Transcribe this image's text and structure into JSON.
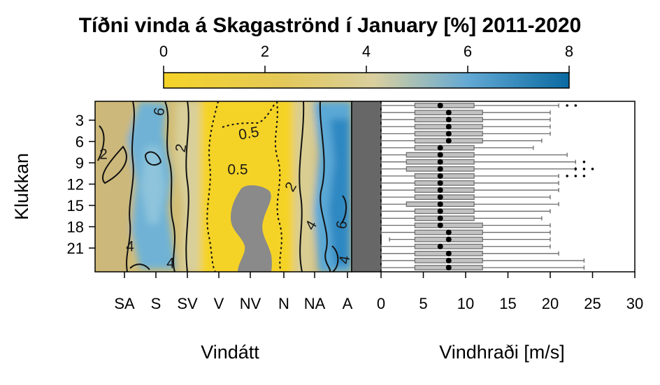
{
  "title": "Tíðni vinda á Skagaströnd í January [%] 2011-2020",
  "colorbar": {
    "ticks": [
      "0",
      "2",
      "4",
      "6",
      "8"
    ],
    "min": 0,
    "max": 8,
    "colors": [
      "#f5d327",
      "#e3c85a",
      "#d9cf9f",
      "#63a9d4",
      "#0a6aa1"
    ]
  },
  "left_panel": {
    "xlabel": "Vindátt",
    "ylabel": "Klukkan",
    "x_ticks": [
      "SA",
      "S",
      "SV",
      "V",
      "NV",
      "N",
      "NA",
      "A"
    ],
    "y_ticks": [
      "3",
      "6",
      "9",
      "12",
      "15",
      "18",
      "21"
    ],
    "contour_labels": [
      "6",
      "2",
      "2",
      "0.5",
      "0.5",
      "2",
      "4",
      "6",
      "4",
      "4",
      "4"
    ]
  },
  "right_panel": {
    "xlabel": "Vindhraði [m/s]",
    "x_ticks": [
      "0",
      "5",
      "10",
      "15",
      "20",
      "25",
      "30"
    ]
  },
  "chart_data": {
    "type": "heatmap",
    "title": "Tíðni vinda á Skagaströnd í January [%] 2011-2020",
    "xlabel": "Vindátt",
    "ylabel": "Klukkan",
    "directions": [
      "SA",
      "S",
      "SV",
      "V",
      "NV",
      "N",
      "NA",
      "A"
    ],
    "contour_levels": [
      0.5,
      2,
      4,
      6
    ],
    "color_scale": {
      "min": 0,
      "max": 8
    },
    "boxplot": {
      "type": "box",
      "xlabel": "Vindhraði [m/s]",
      "xlim": [
        0,
        30
      ],
      "hours": [
        1,
        2,
        3,
        4,
        5,
        6,
        7,
        8,
        9,
        10,
        11,
        12,
        13,
        14,
        15,
        16,
        17,
        18,
        19,
        20,
        21,
        22,
        23,
        24
      ],
      "median": [
        7,
        8,
        8,
        8,
        8,
        8,
        7,
        7,
        7,
        7,
        7,
        7,
        7,
        7,
        7,
        7,
        7,
        7,
        8,
        8,
        7,
        8,
        8,
        8
      ],
      "q1": [
        4,
        4,
        4,
        4,
        4,
        4,
        4,
        3,
        3,
        3,
        4,
        4,
        4,
        4,
        3,
        4,
        4,
        4,
        4,
        4,
        4,
        4,
        4,
        4
      ],
      "q3": [
        11,
        12,
        12,
        12,
        12,
        12,
        11,
        11,
        11,
        11,
        11,
        11,
        11,
        11,
        11,
        11,
        11,
        12,
        12,
        12,
        12,
        12,
        12,
        12
      ],
      "whisker_low": [
        0,
        0,
        0,
        0,
        0,
        0,
        0,
        0,
        0,
        0,
        0,
        0,
        0,
        0,
        0,
        0,
        0,
        0,
        0,
        1,
        0,
        0,
        0,
        0
      ],
      "whisker_high": [
        21,
        20,
        20,
        20,
        20,
        19,
        18,
        22,
        23,
        23,
        21,
        21,
        21,
        20,
        21,
        20,
        19,
        20,
        20,
        20,
        20,
        21,
        24,
        24
      ],
      "outliers": [
        [
          22,
          23
        ],
        [],
        [],
        [],
        [],
        [],
        [],
        [],
        [
          24
        ],
        [
          23,
          24,
          25
        ],
        [
          22,
          23,
          24
        ],
        [],
        [],
        [],
        [],
        [],
        [],
        [],
        [],
        [],
        [],
        [],
        [],
        []
      ]
    }
  }
}
